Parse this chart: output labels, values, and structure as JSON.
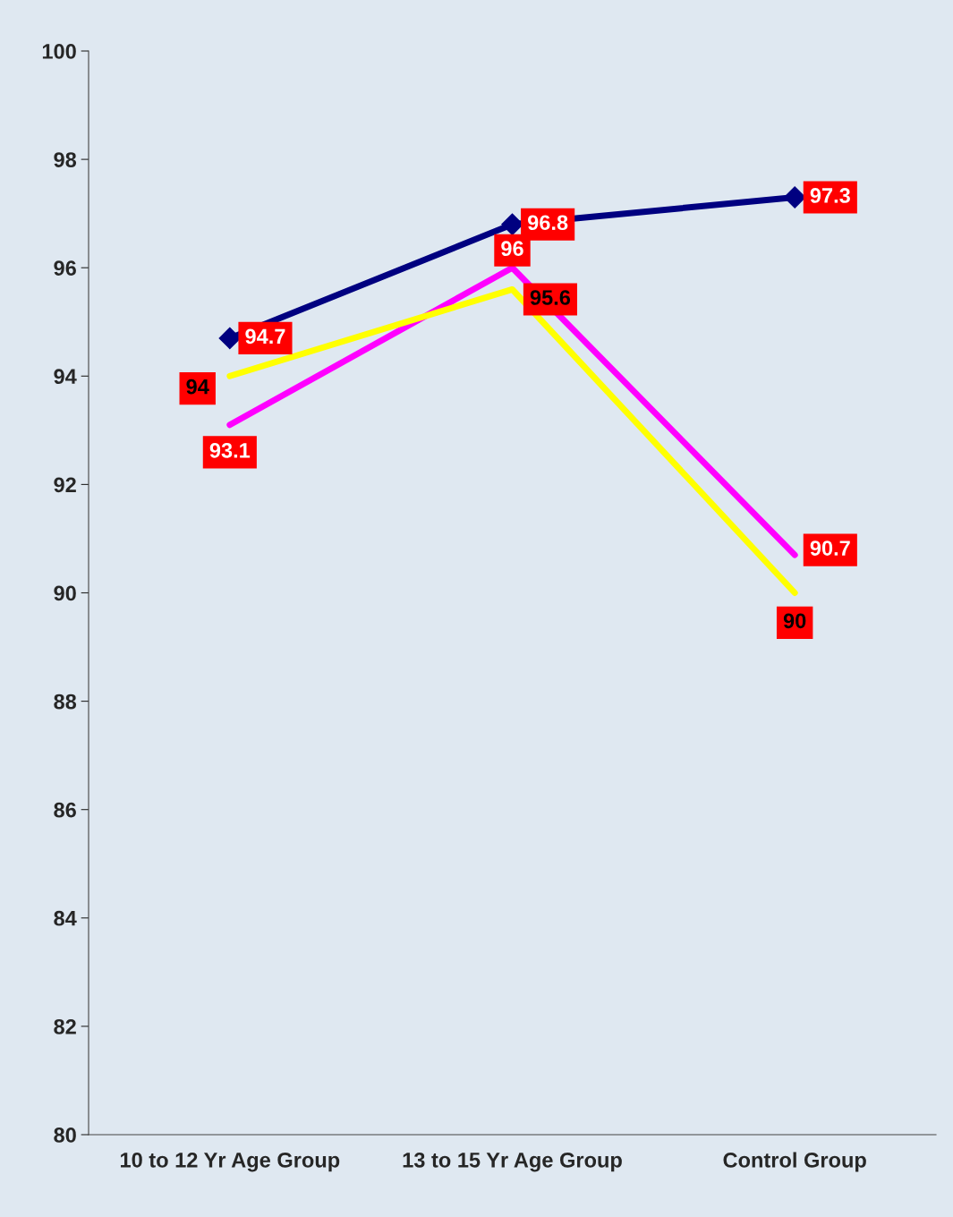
{
  "chart_data": {
    "type": "line",
    "categories": [
      "10 to 12 Yr Age Group",
      "13 to 15 Yr Age Group",
      "Control Group"
    ],
    "series": [
      {
        "color": "#000080",
        "values": [
          94.7,
          96.8,
          97.3
        ],
        "marker": "diamond"
      },
      {
        "color": "#ff00ff",
        "values": [
          93.1,
          96,
          90.7
        ],
        "marker": "none"
      },
      {
        "color": "#ffff00",
        "values": [
          94,
          95.6,
          90
        ],
        "marker": "none"
      }
    ],
    "ylim": [
      80,
      100
    ],
    "yticks": [
      80,
      82,
      84,
      86,
      88,
      90,
      92,
      94,
      96,
      98,
      100
    ],
    "grid": false,
    "legend": false,
    "data_labels": true,
    "line_style": "solid"
  }
}
